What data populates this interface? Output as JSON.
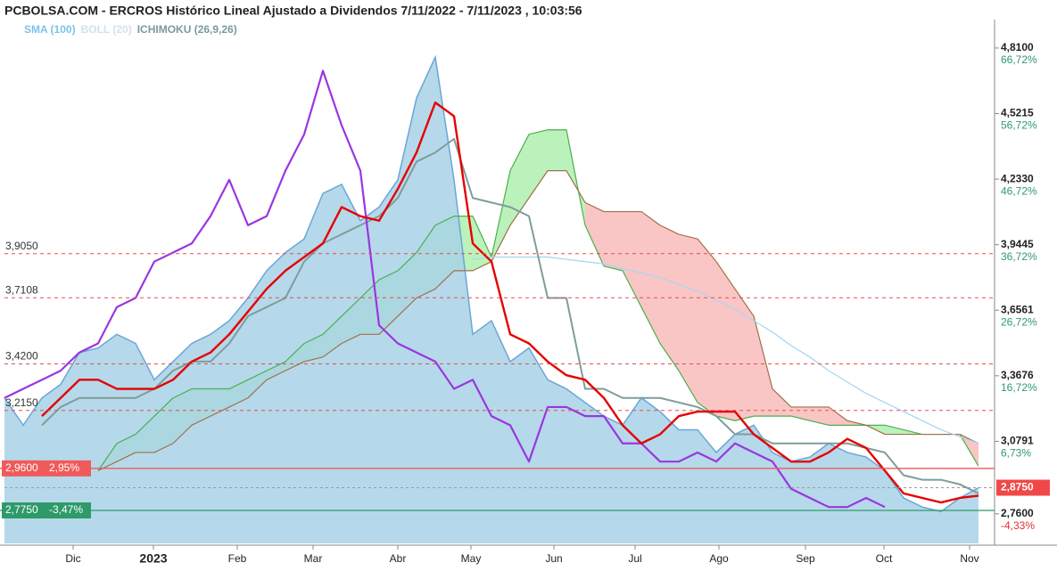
{
  "chart_data": {
    "type": "ichimoku",
    "title": "PCBOLSA.COM - ERCROS Histórico Lineal Ajustado a Dividendos 7/11/2022 - 7/11/2023 , 10:03:56",
    "legend": [
      {
        "label": "SMA (100)",
        "color": "#7cc3e8"
      },
      {
        "label": "BOLL (20)",
        "color": "#cfe3ee"
      },
      {
        "label": "ICHIMOKU (26,9,26)",
        "color": "#7a9aa0"
      }
    ],
    "x_axis_labels": [
      "Dic",
      "2023",
      "Feb",
      "Mar",
      "Abr",
      "May",
      "Jun",
      "Jul",
      "Ago",
      "Sep",
      "Oct",
      "Nov"
    ],
    "ylim": [
      2.63,
      4.935
    ],
    "y2lim": [
      -8.84,
      71.06
    ],
    "yticks": [
      {
        "value": 4.81,
        "label": "4,8100"
      },
      {
        "value": 4.5215,
        "label": "4,5215"
      },
      {
        "value": 4.233,
        "label": "4,2330"
      },
      {
        "value": 3.9445,
        "label": "3,9445"
      },
      {
        "value": 3.6561,
        "label": "3,6561"
      },
      {
        "value": 3.3676,
        "label": "3,3676"
      },
      {
        "value": 3.0791,
        "label": "3,0791"
      },
      {
        "value": 2.76,
        "label": "2,7600"
      }
    ],
    "y2ticks": [
      {
        "value": 66.72,
        "label": "66,72%"
      },
      {
        "value": 56.72,
        "label": "56,72%"
      },
      {
        "value": 46.72,
        "label": "46,72%"
      },
      {
        "value": 36.72,
        "label": "36,72%"
      },
      {
        "value": 26.72,
        "label": "26,72%"
      },
      {
        "value": 16.72,
        "label": "16,72%"
      },
      {
        "value": 6.73,
        "label": "6,73%"
      },
      {
        "value": -4.33,
        "label": "-4,33%"
      }
    ],
    "levels": [
      {
        "value": 3.905,
        "label": "3,9050"
      },
      {
        "value": 3.7108,
        "label": "3,7108"
      },
      {
        "value": 3.42,
        "label": "3,4200"
      },
      {
        "value": 3.215,
        "label": "3,2150"
      }
    ],
    "level_color": "#e05050",
    "price_lines": [
      {
        "value": 2.96,
        "label": "2,9600",
        "pct": {
          "value": 2.95,
          "label": "2,95%"
        },
        "color": "#f05a5a"
      },
      {
        "value": 2.775,
        "label": "2,7750",
        "pct": {
          "value": -3.47,
          "label": "-3,47%"
        },
        "color": "#2e9a6a"
      }
    ],
    "last_price": {
      "value": 2.875,
      "label": "2,8750",
      "color": "#f04848"
    },
    "cloud_up_color": "rgba(120,230,120,0.5)",
    "cloud_down_color": "rgba(245,140,140,0.5)",
    "series": [
      {
        "style": "area",
        "color": "#6aa6d6",
        "fill": "#a8d2e6",
        "values": [
          3.27,
          3.15,
          3.27,
          3.33,
          3.47,
          3.49,
          3.55,
          3.51,
          3.35,
          3.43,
          3.51,
          3.55,
          3.61,
          3.71,
          3.83,
          3.91,
          3.97,
          4.17,
          4.21,
          4.05,
          4.11,
          4.23,
          4.59,
          4.77,
          4.23,
          3.55,
          3.61,
          3.43,
          3.49,
          3.35,
          3.31,
          3.25,
          3.19,
          3.15,
          3.27,
          3.21,
          3.13,
          3.13,
          3.03,
          3.11,
          3.15,
          3.03,
          2.99,
          3.01,
          3.07,
          3.03,
          3.01,
          2.95,
          2.83,
          2.79,
          2.77,
          2.83,
          2.875
        ]
      },
      {
        "style": "span_a",
        "color": "#4caf50",
        "values": [
          null,
          null,
          null,
          null,
          null,
          2.95,
          3.07,
          3.11,
          3.19,
          3.27,
          3.31,
          3.31,
          3.31,
          3.35,
          3.39,
          3.43,
          3.51,
          3.55,
          3.63,
          3.71,
          3.79,
          3.83,
          3.91,
          4.03,
          4.07,
          4.07,
          3.89,
          4.27,
          4.43,
          4.45,
          4.45,
          4.03,
          3.85,
          3.83,
          3.67,
          3.51,
          3.39,
          3.25,
          3.19,
          3.17,
          3.19,
          3.19,
          3.19,
          3.17,
          3.15,
          3.15,
          3.15,
          3.15,
          3.13,
          3.11,
          3.11,
          3.11,
          2.97
        ]
      },
      {
        "style": "span_b",
        "color": "#a0704a",
        "values": [
          null,
          null,
          null,
          null,
          null,
          2.95,
          2.99,
          3.03,
          3.03,
          3.07,
          3.15,
          3.19,
          3.23,
          3.27,
          3.35,
          3.39,
          3.43,
          3.45,
          3.51,
          3.55,
          3.55,
          3.63,
          3.71,
          3.75,
          3.83,
          3.83,
          3.87,
          4.03,
          4.15,
          4.27,
          4.27,
          4.13,
          4.09,
          4.09,
          4.09,
          4.03,
          3.99,
          3.97,
          3.87,
          3.75,
          3.63,
          3.31,
          3.23,
          3.23,
          3.23,
          3.17,
          3.15,
          3.11,
          3.11,
          3.11,
          3.11,
          3.11,
          3.07
        ]
      },
      {
        "style": "line",
        "color": "#a8d8f0",
        "width": 1.3,
        "values": [
          null,
          null,
          null,
          null,
          null,
          null,
          null,
          null,
          null,
          null,
          null,
          null,
          null,
          null,
          null,
          null,
          null,
          null,
          null,
          null,
          null,
          null,
          null,
          null,
          null,
          3.88,
          3.89,
          3.89,
          3.89,
          3.89,
          3.88,
          3.87,
          3.86,
          3.84,
          3.82,
          3.8,
          3.77,
          3.74,
          3.7,
          3.66,
          3.61,
          3.56,
          3.5,
          3.45,
          3.39,
          3.34,
          3.29,
          3.25,
          3.21,
          3.17,
          3.13,
          3.1,
          3.07
        ]
      },
      {
        "style": "line",
        "color": "#7f9c9c",
        "width": 2,
        "values": [
          null,
          null,
          3.15,
          3.23,
          3.27,
          3.27,
          3.27,
          3.27,
          3.31,
          3.39,
          3.43,
          3.43,
          3.51,
          3.63,
          3.67,
          3.71,
          3.87,
          3.95,
          3.99,
          4.03,
          4.07,
          4.15,
          4.31,
          4.35,
          4.41,
          4.15,
          4.13,
          4.11,
          4.07,
          3.71,
          3.71,
          3.31,
          3.31,
          3.27,
          3.27,
          3.27,
          3.25,
          3.23,
          3.19,
          3.11,
          3.11,
          3.07,
          3.07,
          3.07,
          3.07,
          3.07,
          3.05,
          3.03,
          2.93,
          2.91,
          2.91,
          2.89,
          2.85
        ]
      },
      {
        "style": "line",
        "color": "#9b35e0",
        "width": 2.2,
        "values": [
          3.27,
          3.31,
          3.35,
          3.39,
          3.47,
          3.51,
          3.67,
          3.71,
          3.87,
          3.91,
          3.95,
          4.07,
          4.23,
          4.03,
          4.07,
          4.27,
          4.43,
          4.71,
          4.47,
          4.27,
          3.59,
          3.51,
          3.47,
          3.43,
          3.31,
          3.35,
          3.19,
          3.15,
          2.99,
          3.23,
          3.23,
          3.19,
          3.19,
          3.07,
          3.07,
          2.99,
          2.99,
          3.03,
          2.99,
          3.07,
          3.03,
          2.99,
          2.87,
          2.83,
          2.79,
          2.79,
          2.83,
          2.79,
          null,
          null,
          null,
          null,
          null
        ]
      },
      {
        "style": "line",
        "color": "#e60000",
        "width": 2.4,
        "values": [
          null,
          null,
          3.19,
          3.27,
          3.35,
          3.35,
          3.31,
          3.31,
          3.31,
          3.35,
          3.43,
          3.47,
          3.55,
          3.65,
          3.75,
          3.83,
          3.89,
          3.95,
          4.11,
          4.07,
          4.05,
          4.19,
          4.35,
          4.57,
          4.51,
          3.95,
          3.87,
          3.55,
          3.51,
          3.43,
          3.37,
          3.35,
          3.27,
          3.15,
          3.07,
          3.11,
          3.19,
          3.21,
          3.21,
          3.21,
          3.11,
          3.05,
          2.99,
          2.99,
          3.03,
          3.09,
          3.05,
          2.95,
          2.85,
          2.83,
          2.81,
          2.83,
          2.84
        ]
      }
    ]
  }
}
